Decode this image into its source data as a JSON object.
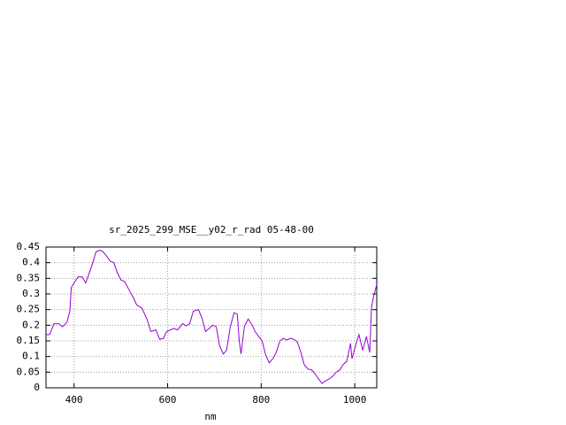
{
  "chart_data": {
    "type": "line",
    "title": "sr_2025_299_MSE__y02_r_rad 05-48-00",
    "x_label": "nm",
    "xlim": [
      340,
      1047
    ],
    "ylim": [
      0,
      0.45
    ],
    "xticks": [
      400,
      600,
      800,
      1000
    ],
    "yticks": [
      0,
      0.05,
      0.1,
      0.15,
      0.2,
      0.25,
      0.3,
      0.35,
      0.4,
      0.45
    ],
    "grid": true,
    "series": [
      {
        "color": "#9400d3",
        "x": [
          340,
          348,
          357,
          368,
          375,
          385,
          391,
          394,
          402,
          409,
          417,
          425,
          432,
          440,
          447,
          455,
          462,
          470,
          477,
          485,
          492,
          500,
          508,
          515,
          526,
          534,
          545,
          557,
          564,
          575,
          583,
          591,
          598,
          613,
          621,
          632,
          640,
          647,
          655,
          666,
          674,
          681,
          689,
          696,
          704,
          711,
          719,
          726,
          734,
          742,
          749,
          753,
          757,
          764,
          772,
          779,
          787,
          794,
          802,
          809,
          817,
          825,
          832,
          840,
          847,
          855,
          862,
          870,
          877,
          885,
          892,
          900,
          908,
          915,
          923,
          930,
          938,
          945,
          953,
          960,
          968,
          975,
          983,
          991,
          994,
          1002,
          1009,
          1017,
          1025,
          1032,
          1036,
          1040,
          1047
        ],
        "values": [
          0.17,
          0.17,
          0.205,
          0.205,
          0.195,
          0.21,
          0.245,
          0.32,
          0.34,
          0.355,
          0.355,
          0.335,
          0.365,
          0.4,
          0.435,
          0.44,
          0.435,
          0.42,
          0.405,
          0.4,
          0.37,
          0.345,
          0.34,
          0.32,
          0.29,
          0.265,
          0.255,
          0.215,
          0.18,
          0.185,
          0.155,
          0.158,
          0.18,
          0.19,
          0.185,
          0.205,
          0.198,
          0.205,
          0.245,
          0.25,
          0.22,
          0.18,
          0.19,
          0.2,
          0.195,
          0.135,
          0.108,
          0.12,
          0.195,
          0.24,
          0.235,
          0.15,
          0.108,
          0.195,
          0.22,
          0.205,
          0.18,
          0.165,
          0.15,
          0.108,
          0.08,
          0.093,
          0.113,
          0.15,
          0.158,
          0.153,
          0.158,
          0.155,
          0.147,
          0.113,
          0.074,
          0.06,
          0.057,
          0.045,
          0.028,
          0.014,
          0.023,
          0.028,
          0.037,
          0.05,
          0.057,
          0.074,
          0.085,
          0.142,
          0.093,
          0.136,
          0.17,
          0.12,
          0.164,
          0.113,
          0.26,
          0.29,
          0.33
        ]
      }
    ]
  }
}
